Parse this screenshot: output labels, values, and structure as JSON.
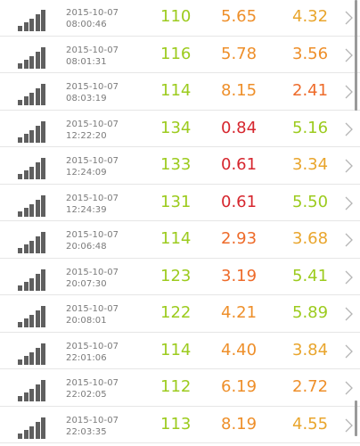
{
  "colors": {
    "green": "#9ccb1e",
    "yellow": "#c5d220",
    "orange": "#ee8f2a",
    "amber": "#e9a52c",
    "red": "#d6262e",
    "text_gray": "#7a7a7a",
    "chevron": "#b5b5b5"
  },
  "rows": [
    {
      "date": "2015-10-07",
      "time": "08:00:46",
      "v1": "110",
      "v2": "5.65",
      "v3": "4.32",
      "c1": "#9ccb1e",
      "c2": "#ee8f2a",
      "c3": "#e9a52c"
    },
    {
      "date": "2015-10-07",
      "time": "08:01:31",
      "v1": "116",
      "v2": "5.78",
      "v3": "3.56",
      "c1": "#9ccb1e",
      "c2": "#ee8f2a",
      "c3": "#ee8f2a"
    },
    {
      "date": "2015-10-07",
      "time": "08:03:19",
      "v1": "114",
      "v2": "8.15",
      "v3": "2.41",
      "c1": "#9ccb1e",
      "c2": "#ee8f2a",
      "c3": "#ee6b2a"
    },
    {
      "date": "2015-10-07",
      "time": "12:22:20",
      "v1": "134",
      "v2": "0.84",
      "v3": "5.16",
      "c1": "#9ccb1e",
      "c2": "#d6262e",
      "c3": "#9ccb1e"
    },
    {
      "date": "2015-10-07",
      "time": "12:24:09",
      "v1": "133",
      "v2": "0.61",
      "v3": "3.34",
      "c1": "#9ccb1e",
      "c2": "#d6262e",
      "c3": "#e9a52c"
    },
    {
      "date": "2015-10-07",
      "time": "12:24:39",
      "v1": "131",
      "v2": "0.61",
      "v3": "5.50",
      "c1": "#9ccb1e",
      "c2": "#d6262e",
      "c3": "#9ccb1e"
    },
    {
      "date": "2015-10-07",
      "time": "20:06:48",
      "v1": "114",
      "v2": "2.93",
      "v3": "3.68",
      "c1": "#9ccb1e",
      "c2": "#ee6b2a",
      "c3": "#e9a52c"
    },
    {
      "date": "2015-10-07",
      "time": "20:07:30",
      "v1": "123",
      "v2": "3.19",
      "v3": "5.41",
      "c1": "#9ccb1e",
      "c2": "#ee6b2a",
      "c3": "#9ccb1e"
    },
    {
      "date": "2015-10-07",
      "time": "20:08:01",
      "v1": "122",
      "v2": "4.21",
      "v3": "5.89",
      "c1": "#9ccb1e",
      "c2": "#ee8f2a",
      "c3": "#9ccb1e"
    },
    {
      "date": "2015-10-07",
      "time": "22:01:06",
      "v1": "114",
      "v2": "4.40",
      "v3": "3.84",
      "c1": "#9ccb1e",
      "c2": "#ee8f2a",
      "c3": "#e9a52c"
    },
    {
      "date": "2015-10-07",
      "time": "22:02:05",
      "v1": "112",
      "v2": "6.19",
      "v3": "2.72",
      "c1": "#9ccb1e",
      "c2": "#ee8f2a",
      "c3": "#ee8f2a"
    },
    {
      "date": "2015-10-07",
      "time": "22:03:35",
      "v1": "113",
      "v2": "8.19",
      "v3": "4.55",
      "c1": "#9ccb1e",
      "c2": "#ee8f2a",
      "c3": "#e9a52c"
    }
  ],
  "icons": {
    "row_signal": "signal-strength-icon",
    "row_chevron": "chevron-right-icon"
  }
}
